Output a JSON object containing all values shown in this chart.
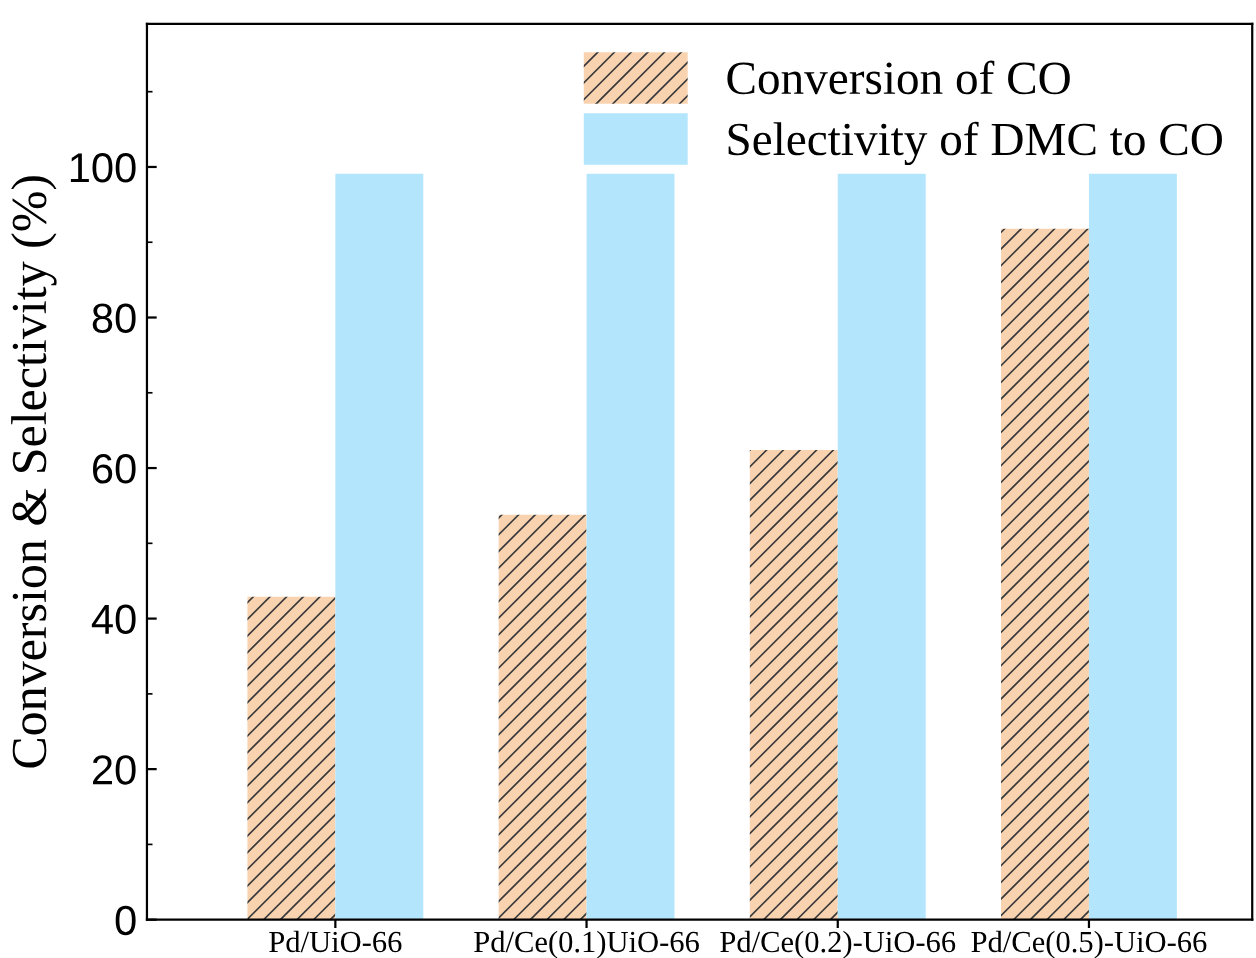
{
  "chart_data": {
    "type": "bar",
    "ylabel": "Conversion & Selectivity (%)",
    "categories": [
      "Pd/UiO-66",
      "Pd/Ce(0.1)UiO-66",
      "Pd/Ce(0.2)-UiO-66",
      "Pd/Ce(0.5)-UiO-66"
    ],
    "series": [
      {
        "name": "Conversion of CO",
        "color": "#f9d3b0",
        "values": [
          42.9,
          53.8,
          62.4,
          91.8
        ]
      },
      {
        "name": "Selectivity of DMC to CO",
        "color": "#b3e5fc",
        "values": [
          99.1,
          99.1,
          99.1,
          99.1
        ]
      }
    ],
    "ylim": [
      0,
      119
    ],
    "yticks": [
      0,
      20,
      40,
      60,
      80,
      100
    ],
    "grid": false,
    "legend": "top right"
  }
}
